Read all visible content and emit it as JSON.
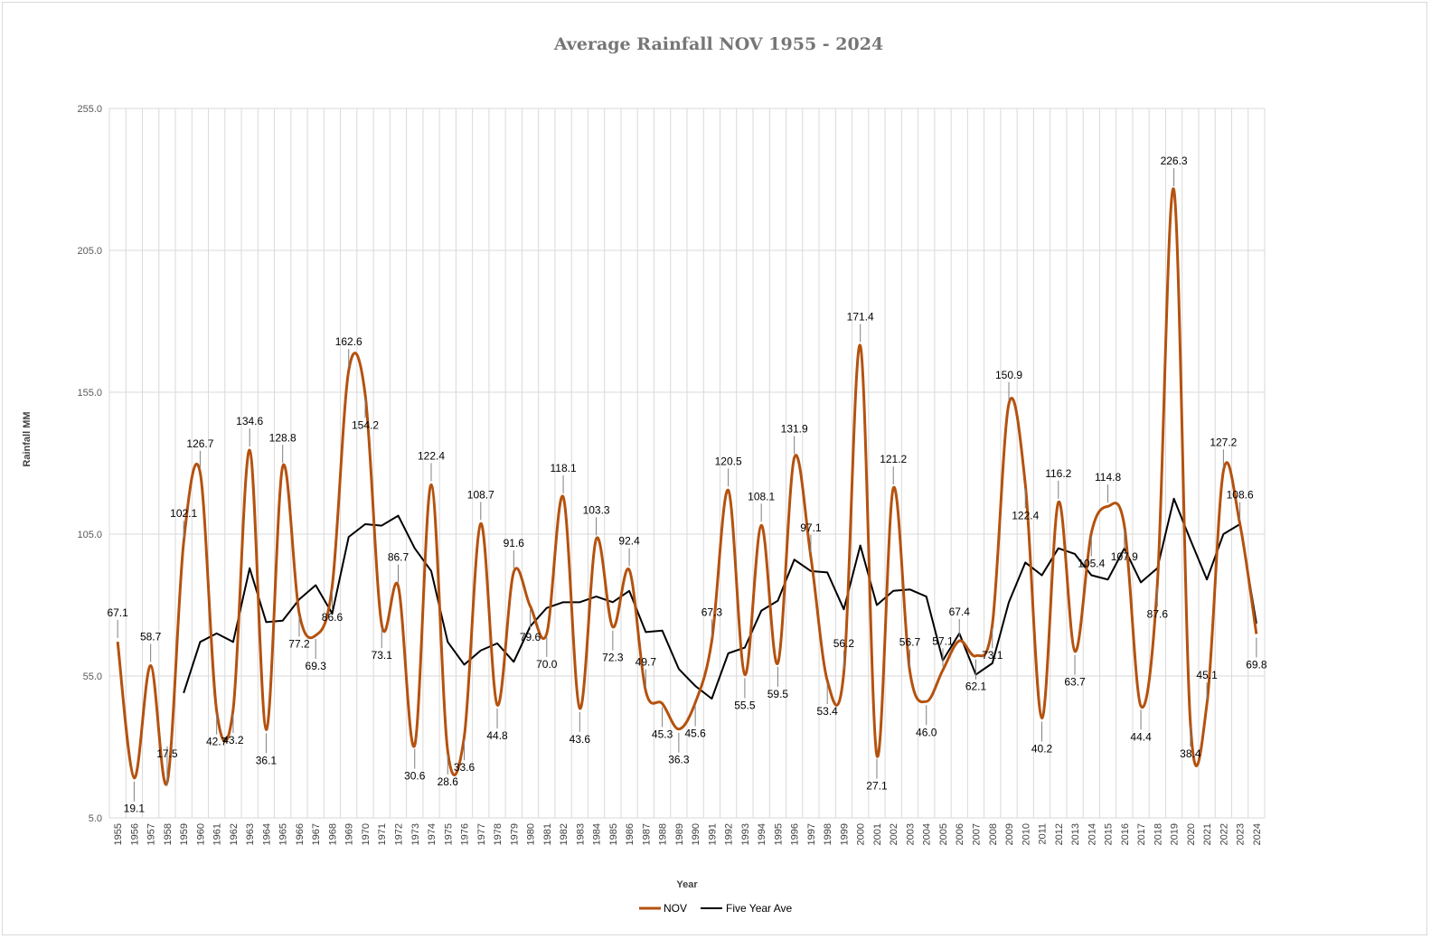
{
  "chart_data": {
    "type": "line",
    "title": "Average Rainfall NOV 1955 - 2024",
    "xlabel": "Year",
    "ylabel": "Rainfall MM",
    "ylim": [
      5.0,
      255.0
    ],
    "yticks": [
      "5.0",
      "55.0",
      "105.0",
      "155.0",
      "205.0",
      "255.0"
    ],
    "x": [
      1955,
      1956,
      1957,
      1958,
      1959,
      1960,
      1961,
      1962,
      1963,
      1964,
      1965,
      1966,
      1967,
      1968,
      1969,
      1970,
      1971,
      1972,
      1973,
      1974,
      1975,
      1976,
      1977,
      1978,
      1979,
      1980,
      1981,
      1982,
      1983,
      1984,
      1985,
      1986,
      1987,
      1988,
      1989,
      1990,
      1991,
      1992,
      1993,
      1994,
      1995,
      1996,
      1997,
      1998,
      1999,
      2000,
      2001,
      2002,
      2003,
      2004,
      2005,
      2006,
      2007,
      2008,
      2009,
      2010,
      2011,
      2012,
      2013,
      2014,
      2015,
      2016,
      2017,
      2018,
      2019,
      2020,
      2021,
      2022,
      2023,
      2024
    ],
    "grid": true,
    "legend_position": "bottom",
    "series": [
      {
        "name": "NOV",
        "color": "#b4520f",
        "smooth": true,
        "values": [
          67.1,
          19.1,
          58.7,
          17.5,
          102.1,
          126.7,
          42.7,
          43.2,
          134.6,
          36.1,
          128.8,
          77.2,
          69.3,
          86.6,
          162.6,
          154.2,
          73.1,
          86.7,
          30.6,
          122.4,
          28.6,
          33.6,
          108.7,
          44.8,
          91.6,
          79.6,
          70.0,
          118.1,
          43.6,
          103.3,
          72.3,
          92.4,
          49.7,
          45.3,
          36.3,
          45.6,
          67.3,
          120.5,
          55.5,
          108.1,
          59.5,
          131.9,
          97.1,
          53.4,
          56.2,
          171.4,
          27.1,
          121.2,
          56.7,
          46.0,
          57.1,
          67.4,
          62.1,
          73.1,
          150.9,
          122.4,
          40.2,
          116.2,
          63.7,
          105.4,
          114.8,
          107.9,
          44.4,
          87.6,
          226.3,
          38.4,
          45.1,
          127.2,
          108.6,
          69.8
        ],
        "labels": [
          "67.1",
          "19.1",
          "58.7",
          "17.5",
          "102.1",
          "126.7",
          "42.7",
          "43.2",
          "134.6",
          "36.1",
          "128.8",
          "77.2",
          "69.3",
          "86.6",
          "162.6",
          "154.2",
          "73.1",
          "86.7",
          "30.6",
          "122.4",
          "28.6",
          "33.6",
          "108.7",
          "44.8",
          "91.6",
          "79.6",
          "70.0",
          "118.1",
          "43.6",
          "103.3",
          "72.3",
          "92.4",
          "49.7",
          "45.3",
          "36.3",
          "45.6",
          "67.3",
          "120.5",
          "55.5",
          "108.1",
          "59.5",
          "131.9",
          "97.1",
          "53.4",
          "56.2",
          "171.4",
          "27.1",
          "121.2",
          "56.7",
          "46.0",
          "57.1",
          "67.4",
          "62.1",
          "73.1",
          "150.9",
          "122.4",
          "40.2",
          "116.2",
          "63.7",
          "105.4",
          "114.8",
          "107.9",
          "44.4",
          "87.6",
          "226.3",
          "38.4",
          "45.1",
          "127.2",
          "108.6",
          "69.8"
        ]
      },
      {
        "name": "Five Year Ave",
        "color": "#000000",
        "smooth": false,
        "values": [
          null,
          null,
          null,
          null,
          49.0,
          67.0,
          70.0,
          67.0,
          93.0,
          74.0,
          74.5,
          82.0,
          87.0,
          77.0,
          104.0,
          108.5,
          108.0,
          111.5,
          100.0,
          92.0,
          67.0,
          59.0,
          64.0,
          66.5,
          60.0,
          72.5,
          79.0,
          81.0,
          81.0,
          83.0,
          81.0,
          85.0,
          70.5,
          71.0,
          57.5,
          51.5,
          47.0,
          63.0,
          65.0,
          78.0,
          81.5,
          96.0,
          92.0,
          91.5,
          78.5,
          101.0,
          80.0,
          85.0,
          85.5,
          83.0,
          60.5,
          70.0,
          55.5,
          59.5,
          81.0,
          95.0,
          90.5,
          100.0,
          98.0,
          90.5,
          89.0,
          100.0,
          88.0,
          93.0,
          117.5,
          103.0,
          89.0,
          105.0,
          108.5,
          73.5
        ]
      }
    ]
  },
  "legend": {
    "items": [
      {
        "label": "NOV",
        "color": "#b4520f"
      },
      {
        "label": "Five Year Ave",
        "color": "#000000"
      }
    ]
  }
}
